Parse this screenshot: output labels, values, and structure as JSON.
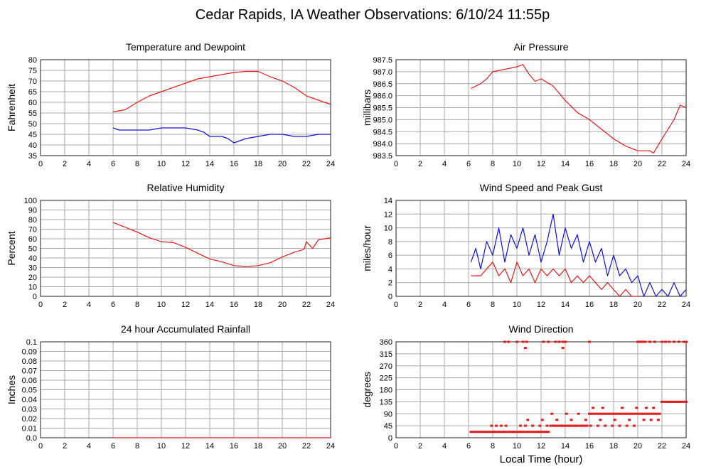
{
  "page_title": "Cedar Rapids, IA Weather Observations: 6/10/24 11:55p",
  "x_axis_label": "Local Time (hour)",
  "colors": {
    "red": "#e41a1a",
    "blue": "#1010dd",
    "grid": "#a8a8a8",
    "frame": "#222222"
  },
  "chart_data": [
    {
      "id": "temp",
      "type": "line",
      "title": "Temperature and Dewpoint",
      "xlabel": "",
      "ylabel": "Fahrenheit",
      "xlim": [
        0,
        24
      ],
      "ylim": [
        35,
        80
      ],
      "xticks": [
        "0",
        "2",
        "4",
        "6",
        "8",
        "10",
        "12",
        "14",
        "16",
        "18",
        "20",
        "22",
        "24"
      ],
      "yticks": [
        "35",
        "40",
        "45",
        "50",
        "55",
        "60",
        "65",
        "70",
        "75",
        "80"
      ],
      "series": [
        {
          "color": "red",
          "x": [
            6.0,
            7.0,
            8.0,
            9.0,
            10.0,
            11.0,
            12.0,
            13.0,
            14.0,
            15.0,
            16.0,
            17.0,
            18.0,
            19.0,
            20.0,
            21.0,
            21.5,
            22.0,
            22.5,
            23.0,
            24.0
          ],
          "y": [
            55.5,
            56.5,
            60,
            63,
            65,
            67,
            69,
            71,
            72,
            73,
            74,
            74.5,
            74.5,
            72,
            70,
            67,
            65,
            63,
            62,
            61,
            59
          ]
        },
        {
          "color": "blue",
          "x": [
            6.0,
            6.5,
            7.0,
            8.0,
            9.0,
            10.0,
            11.0,
            12.0,
            13.0,
            13.5,
            14.0,
            15.0,
            15.5,
            16.0,
            17.0,
            18.0,
            19.0,
            20.0,
            21.0,
            22.0,
            23.0,
            24.0
          ],
          "y": [
            48,
            47,
            47,
            47,
            47,
            48,
            48,
            48,
            47,
            46,
            44,
            44,
            43,
            41,
            43,
            44,
            45,
            45,
            44,
            44,
            45,
            45
          ]
        }
      ]
    },
    {
      "id": "pressure",
      "type": "line",
      "title": "Air Pressure",
      "xlabel": "",
      "ylabel": "millibars",
      "xlim": [
        0,
        24
      ],
      "ylim": [
        983.5,
        987.5
      ],
      "xticks": [
        "0",
        "2",
        "4",
        "6",
        "8",
        "10",
        "12",
        "14",
        "16",
        "18",
        "20",
        "22",
        "24"
      ],
      "yticks": [
        "983.5",
        "984.0",
        "984.5",
        "985.0",
        "985.5",
        "986.0",
        "986.5",
        "987.0",
        "987.5"
      ],
      "series": [
        {
          "color": "red",
          "x": [
            6.2,
            7.0,
            7.5,
            8.0,
            9.0,
            10.0,
            10.5,
            11.0,
            11.5,
            12.0,
            13.0,
            13.5,
            14.0,
            15.0,
            16.0,
            17.0,
            18.0,
            19.0,
            19.5,
            20.0,
            21.0,
            21.3,
            22.0,
            23.0,
            23.5,
            24.0
          ],
          "y": [
            986.3,
            986.5,
            986.7,
            987.0,
            987.1,
            987.2,
            987.3,
            986.9,
            986.6,
            986.7,
            986.4,
            986.1,
            985.8,
            985.3,
            985.0,
            984.6,
            984.2,
            983.9,
            983.8,
            983.7,
            983.7,
            983.6,
            984.2,
            985.0,
            985.6,
            985.5
          ]
        }
      ]
    },
    {
      "id": "humidity",
      "type": "line",
      "title": "Relative Humidity",
      "xlabel": "",
      "ylabel": "Percent",
      "xlim": [
        0,
        24
      ],
      "ylim": [
        0,
        100
      ],
      "xticks": [
        "0",
        "2",
        "4",
        "6",
        "8",
        "10",
        "12",
        "14",
        "16",
        "18",
        "20",
        "22",
        "24"
      ],
      "yticks": [
        "0",
        "10",
        "20",
        "30",
        "40",
        "50",
        "60",
        "70",
        "80",
        "90",
        "100"
      ],
      "series": [
        {
          "color": "red",
          "x": [
            6.0,
            7.0,
            8.0,
            9.0,
            10.0,
            11.0,
            12.0,
            13.0,
            14.0,
            15.0,
            16.0,
            17.0,
            18.0,
            19.0,
            20.0,
            21.0,
            21.8,
            22.0,
            22.5,
            23.0,
            24.0
          ],
          "y": [
            77,
            72,
            67,
            61,
            57,
            56,
            51,
            45,
            39,
            36,
            32,
            31,
            32,
            35,
            41,
            46,
            49,
            57,
            50,
            59,
            61
          ]
        }
      ]
    },
    {
      "id": "wind",
      "type": "line",
      "title": "Wind Speed and Peak Gust",
      "xlabel": "",
      "ylabel": "miles/hour",
      "xlim": [
        0,
        24
      ],
      "ylim": [
        0,
        14
      ],
      "xticks": [
        "0",
        "2",
        "4",
        "6",
        "8",
        "10",
        "12",
        "14",
        "16",
        "18",
        "20",
        "22",
        "24"
      ],
      "yticks": [
        "0",
        "2",
        "4",
        "6",
        "8",
        "10",
        "12",
        "14"
      ],
      "series": [
        {
          "color": "blue",
          "x": [
            6.2,
            6.6,
            7.0,
            7.5,
            8.0,
            8.5,
            9.0,
            9.5,
            10.0,
            10.5,
            11.0,
            11.5,
            12.0,
            12.5,
            13.0,
            13.5,
            14.0,
            14.5,
            15.0,
            15.5,
            16.0,
            16.5,
            17.0,
            17.5,
            18.0,
            18.5,
            19.0,
            19.5,
            20.0,
            20.5,
            21.0,
            21.5,
            22.0,
            22.5,
            23.0,
            23.5,
            24.0
          ],
          "y": [
            5,
            7,
            4,
            8,
            6,
            10,
            5,
            9,
            7,
            10,
            6,
            9,
            5,
            8,
            12,
            6,
            10,
            7,
            9,
            5,
            8,
            5,
            7,
            3,
            6,
            3,
            4,
            2,
            3,
            0,
            2,
            0,
            1,
            0,
            2,
            0,
            1
          ]
        },
        {
          "color": "red",
          "x": [
            6.2,
            7.0,
            7.5,
            8.0,
            8.5,
            9.0,
            9.5,
            10.0,
            10.5,
            11.0,
            11.5,
            12.0,
            12.5,
            13.0,
            13.5,
            14.0,
            14.5,
            15.0,
            15.5,
            16.0,
            16.5,
            17.0,
            17.5,
            18.0,
            18.5,
            19.0,
            19.5,
            20.0
          ],
          "y": [
            3,
            3,
            4,
            5,
            3,
            4,
            2,
            5,
            3,
            4,
            2,
            4,
            3,
            4,
            3,
            4,
            2,
            3,
            2,
            3,
            2,
            1,
            2,
            1,
            0,
            1,
            0,
            0
          ]
        }
      ]
    },
    {
      "id": "rain",
      "type": "line",
      "title": "24 hour Accumulated Rainfall",
      "xlabel": "",
      "ylabel": "Inches",
      "xlim": [
        0,
        24
      ],
      "ylim": [
        0,
        0.1
      ],
      "xticks": [
        "0",
        "2",
        "4",
        "6",
        "8",
        "10",
        "12",
        "14",
        "16",
        "18",
        "20",
        "22",
        "24"
      ],
      "yticks": [
        "0.0",
        "0.01",
        "0.02",
        "0.03",
        "0.04",
        "0.05",
        "0.06",
        "0.07",
        "0.08",
        "0.09",
        "0.1"
      ],
      "series": [
        {
          "color": "red",
          "x": [
            6.0,
            24.0
          ],
          "y": [
            0,
            0
          ]
        }
      ]
    },
    {
      "id": "direction",
      "type": "scatter",
      "title": "Wind Direction",
      "xlabel": "Local Time (hour)",
      "ylabel": "degrees",
      "xlim": [
        0,
        24
      ],
      "ylim": [
        0,
        360
      ],
      "xticks": [
        "0",
        "2",
        "4",
        "6",
        "8",
        "10",
        "12",
        "14",
        "16",
        "18",
        "20",
        "22",
        "24"
      ],
      "yticks": [
        "0",
        "45",
        "90",
        "135",
        "180",
        "225",
        "270",
        "315",
        "360"
      ],
      "series": [
        {
          "color": "red",
          "x": [
            6.2,
            6.4,
            6.6,
            6.8,
            7.0,
            7.2,
            7.4,
            7.6,
            7.8,
            8.0,
            8.2,
            8.4,
            8.6,
            8.8,
            9.0,
            9.2,
            9.4,
            9.6,
            9.8,
            10.0,
            10.2,
            10.4,
            10.6,
            10.8,
            11.0,
            11.2,
            11.4,
            11.6,
            11.8,
            12.0,
            12.2,
            12.4,
            12.6,
            12.8,
            13.0,
            13.2,
            13.4,
            13.6,
            13.8,
            14.0,
            14.2,
            14.4,
            14.6,
            14.8,
            15.0,
            15.2,
            15.4,
            15.6,
            15.8,
            16.0,
            16.2,
            16.4,
            16.6,
            16.8,
            17.0,
            17.2,
            17.4,
            17.6,
            17.8,
            18.0,
            18.2,
            18.4,
            18.6,
            18.8,
            19.0,
            19.2,
            19.4,
            19.6,
            19.8,
            20.0,
            20.2,
            20.4,
            20.6,
            20.8,
            21.0,
            21.2,
            21.4,
            21.6,
            21.8,
            22.0,
            22.2,
            22.4,
            22.6,
            22.8,
            23.0,
            23.2,
            23.4,
            23.6,
            23.8,
            24.0,
            7.9,
            8.3,
            8.7,
            9.1,
            10.3,
            10.7,
            11.3,
            11.9,
            12.5,
            13.1,
            13.7,
            14.3,
            14.9,
            15.5,
            16.1,
            16.7,
            17.3,
            17.9,
            18.5,
            19.1,
            19.7,
            8.1,
            9.7,
            10.9,
            12.1,
            13.3,
            14.5,
            15.7,
            16.9,
            18.1,
            19.3,
            20.5,
            21.1,
            21.7,
            12.9,
            14.1,
            15.1,
            16.3,
            17.1,
            18.7,
            19.9,
            20.7,
            21.3,
            9.0,
            9.3,
            10.0,
            10.5,
            10.8,
            12.2,
            12.6,
            13.2,
            13.5,
            13.8,
            14.0,
            16.0,
            20.0,
            20.2,
            20.4,
            20.6,
            21.0,
            21.4,
            22.0,
            22.3,
            22.6,
            23.0,
            23.4,
            23.8,
            24.0,
            10.7,
            13.8
          ],
          "y": [
            22,
            22,
            22,
            22,
            22,
            22,
            22,
            22,
            22,
            22,
            22,
            22,
            22,
            22,
            22,
            22,
            22,
            22,
            22,
            22,
            22,
            22,
            22,
            22,
            22,
            22,
            22,
            22,
            22,
            22,
            22,
            22,
            22,
            45,
            45,
            45,
            45,
            45,
            45,
            45,
            45,
            45,
            45,
            45,
            45,
            45,
            45,
            45,
            45,
            90,
            90,
            90,
            90,
            90,
            90,
            90,
            90,
            90,
            90,
            90,
            90,
            90,
            90,
            90,
            90,
            90,
            90,
            90,
            90,
            90,
            90,
            90,
            90,
            90,
            90,
            90,
            90,
            90,
            90,
            135,
            135,
            135,
            135,
            135,
            135,
            135,
            135,
            135,
            135,
            135,
            45,
            45,
            45,
            45,
            45,
            45,
            45,
            45,
            45,
            45,
            45,
            45,
            45,
            45,
            45,
            45,
            45,
            45,
            45,
            45,
            45,
            22,
            22,
            67,
            67,
            67,
            67,
            67,
            67,
            67,
            67,
            67,
            67,
            67,
            90,
            90,
            90,
            112,
            112,
            112,
            112,
            112,
            112,
            360,
            360,
            360,
            360,
            360,
            360,
            360,
            360,
            360,
            360,
            360,
            360,
            360,
            360,
            360,
            360,
            360,
            360,
            360,
            360,
            360,
            360,
            360,
            360,
            360,
            337,
            337
          ]
        }
      ]
    }
  ]
}
